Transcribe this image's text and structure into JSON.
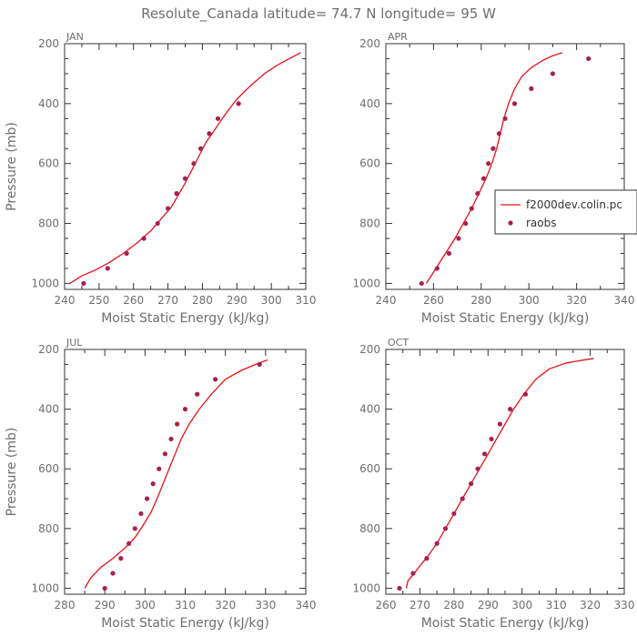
{
  "figure": {
    "title": "Resolute_Canada  latitude= 74.7 N longitude= 95 W"
  },
  "colors": {
    "model_line": "#e8111a",
    "raobs_marker": "#a8204f",
    "axis": "#333333",
    "text": "#6e6e6e"
  },
  "legend": {
    "panel": "APR",
    "entries": [
      {
        "label": "f2000dev.colin.pc",
        "style": "line"
      },
      {
        "label": "raobs",
        "style": "marker"
      }
    ]
  },
  "chart_data": [
    {
      "type": "line",
      "panel_label": "JAN",
      "xlabel": "Moist Static Energy (kJ/kg)",
      "ylabel": "Pressure (mb)",
      "xlim": [
        240,
        310
      ],
      "ylim": [
        1020,
        200
      ],
      "xticks": [
        240,
        250,
        260,
        270,
        280,
        290,
        300,
        310
      ],
      "yticks": [
        200,
        400,
        600,
        800,
        1000
      ],
      "series": [
        {
          "style": "line",
          "x": [
            241.5,
            245,
            249,
            253,
            257,
            261,
            265,
            268,
            271,
            273,
            275,
            277,
            279,
            281,
            284,
            287,
            290,
            294,
            298,
            302,
            306,
            308.5
          ],
          "y": [
            1000,
            975,
            955,
            930,
            900,
            865,
            825,
            785,
            745,
            705,
            665,
            620,
            575,
            530,
            480,
            430,
            385,
            340,
            300,
            270,
            245,
            230
          ]
        },
        {
          "name": "raobs",
          "style": "marker",
          "x": [
            245.5,
            252.5,
            258,
            263,
            267,
            270,
            272.5,
            275,
            277.5,
            279.5,
            282,
            284.5,
            290.5
          ],
          "y": [
            1000,
            950,
            900,
            850,
            800,
            750,
            700,
            650,
            600,
            550,
            500,
            450,
            400
          ]
        }
      ]
    },
    {
      "type": "line",
      "panel_label": "APR",
      "xlabel": "Moist Static Energy (kJ/kg)",
      "ylabel": "",
      "xlim": [
        240,
        340
      ],
      "ylim": [
        1020,
        200
      ],
      "xticks": [
        240,
        260,
        280,
        300,
        320,
        340
      ],
      "yticks": [
        200,
        400,
        600,
        800,
        1000
      ],
      "series": [
        {
          "name": "f2000dev.colin.pc",
          "style": "line",
          "x": [
            257,
            261,
            265,
            269,
            272.5,
            276,
            279,
            282,
            284.5,
            286.5,
            288,
            289.5,
            291.5,
            294,
            297,
            301,
            306,
            310,
            314
          ],
          "y": [
            1000,
            950,
            900,
            850,
            800,
            750,
            700,
            650,
            600,
            550,
            500,
            450,
            400,
            350,
            310,
            280,
            255,
            240,
            230
          ]
        },
        {
          "name": "raobs",
          "style": "marker",
          "x": [
            255,
            261.5,
            266.5,
            270.5,
            273.5,
            276,
            278.5,
            281,
            283,
            285,
            287.5,
            290,
            294,
            301,
            310,
            325
          ],
          "y": [
            1000,
            950,
            900,
            850,
            800,
            750,
            700,
            650,
            600,
            550,
            500,
            450,
            400,
            350,
            300,
            250
          ]
        }
      ]
    },
    {
      "type": "line",
      "panel_label": "JUL",
      "xlabel": "Moist Static Energy (kJ/kg)",
      "ylabel": "Pressure (mb)",
      "xlim": [
        280,
        340
      ],
      "ylim": [
        1020,
        200
      ],
      "xticks": [
        280,
        290,
        300,
        310,
        320,
        330,
        340
      ],
      "yticks": [
        200,
        400,
        600,
        800,
        1000
      ],
      "series": [
        {
          "style": "line",
          "x": [
            285,
            286.5,
            289,
            292,
            295,
            297.5,
            299.5,
            301.5,
            303,
            304.5,
            306,
            307.5,
            309,
            311,
            313.5,
            316.5,
            320,
            324,
            327.5,
            330.5
          ],
          "y": [
            1000,
            965,
            930,
            900,
            865,
            830,
            790,
            745,
            700,
            650,
            600,
            550,
            500,
            450,
            400,
            350,
            300,
            270,
            250,
            235
          ]
        },
        {
          "name": "raobs",
          "style": "marker",
          "x": [
            290,
            292,
            294,
            296,
            297.5,
            299,
            300.5,
            302,
            303.5,
            305,
            306.5,
            308,
            310,
            313,
            317.5,
            328.5
          ],
          "y": [
            1000,
            950,
            900,
            850,
            800,
            750,
            700,
            650,
            600,
            550,
            500,
            450,
            400,
            350,
            300,
            250
          ]
        }
      ]
    },
    {
      "type": "line",
      "panel_label": "OCT",
      "xlabel": "Moist Static Energy (kJ/kg)",
      "ylabel": "",
      "xlim": [
        260,
        330
      ],
      "ylim": [
        1020,
        200
      ],
      "xticks": [
        260,
        270,
        280,
        290,
        300,
        310,
        320,
        330
      ],
      "yticks": [
        200,
        400,
        600,
        800,
        1000
      ],
      "series": [
        {
          "style": "line",
          "x": [
            266,
            266.5,
            268,
            270,
            272.5,
            275,
            277.5,
            280,
            282.5,
            285,
            287.5,
            290,
            292.5,
            295,
            297.5,
            300.5,
            304,
            308,
            313,
            321
          ],
          "y": [
            1000,
            975,
            955,
            925,
            890,
            850,
            800,
            750,
            700,
            650,
            600,
            550,
            500,
            450,
            400,
            350,
            300,
            265,
            245,
            230
          ]
        },
        {
          "name": "raobs",
          "style": "marker",
          "x": [
            264,
            268,
            272,
            275,
            277.5,
            280,
            282.5,
            285,
            287,
            289,
            291,
            293.5,
            296.5,
            301
          ],
          "y": [
            1000,
            950,
            900,
            850,
            800,
            750,
            700,
            650,
            600,
            550,
            500,
            450,
            400,
            350
          ]
        }
      ]
    }
  ]
}
